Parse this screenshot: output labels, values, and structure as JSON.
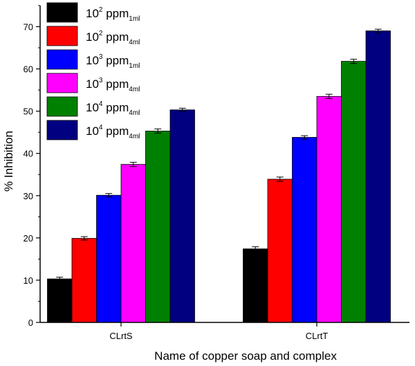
{
  "chart_data": {
    "type": "bar",
    "title": "",
    "xlabel": "Name of copper soap and complex",
    "ylabel": "% Inhibition",
    "ylim": [
      0,
      75
    ],
    "yticks": [
      "0",
      "10",
      "20",
      "30",
      "40",
      "50",
      "60",
      "70"
    ],
    "categories": [
      "CLrtS",
      "CLrtT"
    ],
    "grid": false,
    "legend_position": "top-left",
    "series": [
      {
        "name": "10^2 ppm_1ml",
        "base": "10",
        "exp": "2",
        "unit": "ppm",
        "sub": "1ml",
        "color": "#000000",
        "values": [
          10.3,
          17.4
        ],
        "errors": [
          0.4,
          0.5
        ]
      },
      {
        "name": "10^2 ppm_4ml",
        "base": "10",
        "exp": "2",
        "unit": "ppm",
        "sub": "4ml",
        "color": "#ff0000",
        "values": [
          19.9,
          33.9
        ],
        "errors": [
          0.4,
          0.5
        ]
      },
      {
        "name": "10^3 ppm_1ml",
        "base": "10",
        "exp": "3",
        "unit": "ppm",
        "sub": "1ml",
        "color": "#0000ff",
        "values": [
          30.1,
          43.8
        ],
        "errors": [
          0.4,
          0.4
        ]
      },
      {
        "name": "10^3 ppm_4ml",
        "base": "10",
        "exp": "3",
        "unit": "ppm",
        "sub": "4ml",
        "color": "#ff00ff",
        "values": [
          37.4,
          53.5
        ],
        "errors": [
          0.5,
          0.5
        ]
      },
      {
        "name": "10^4 ppm_4ml",
        "base": "10",
        "exp": "4",
        "unit": "ppm",
        "sub": "4ml",
        "color": "#008000",
        "values": [
          45.3,
          61.8
        ],
        "errors": [
          0.5,
          0.5
        ]
      },
      {
        "name": "10^4 ppm_4ml",
        "base": "10",
        "exp": "4",
        "unit": "ppm",
        "sub": "4ml",
        "color": "#000080",
        "values": [
          50.3,
          69.0
        ],
        "errors": [
          0.4,
          0.4
        ]
      }
    ]
  }
}
